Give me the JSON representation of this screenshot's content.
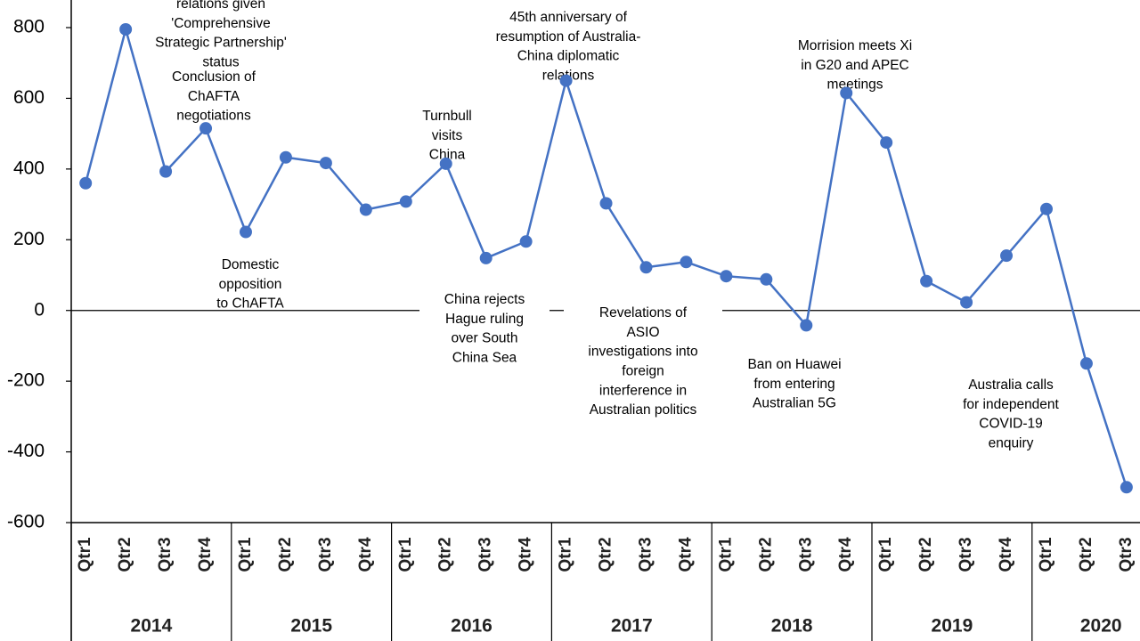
{
  "chart_data": {
    "type": "line",
    "categories": [
      "Qtr1",
      "Qtr2",
      "Qtr3",
      "Qtr4",
      "Qtr1",
      "Qtr2",
      "Qtr3",
      "Qtr4",
      "Qtr1",
      "Qtr2",
      "Qtr3",
      "Qtr4",
      "Qtr1",
      "Qtr2",
      "Qtr3",
      "Qtr4",
      "Qtr1",
      "Qtr2",
      "Qtr3",
      "Qtr4",
      "Qtr1",
      "Qtr2",
      "Qtr3",
      "Qtr4",
      "Qtr1",
      "Qtr2",
      "Qtr3"
    ],
    "years": [
      "2014",
      "2015",
      "2016",
      "2017",
      "2018",
      "2019",
      "2020"
    ],
    "series": [
      {
        "color": "#4472c4",
        "values": [
          360,
          795,
          393,
          515,
          222,
          433,
          417,
          285,
          308,
          415,
          148,
          195,
          650,
          303,
          122,
          137,
          97,
          88,
          -42,
          615,
          475,
          83,
          23,
          155,
          287,
          -150,
          -500
        ]
      }
    ],
    "ylim": [
      -600,
      800
    ],
    "yticks": [
      -600,
      -400,
      -200,
      0,
      200,
      400,
      600,
      800
    ],
    "annotations": [
      [
        "relations given",
        "'Comprehensive",
        "Strategic Partnership'",
        "status"
      ],
      [
        "Conclusion of",
        "ChAFTA",
        "negotiations"
      ],
      [
        "Domestic",
        "opposition",
        "to ChAFTA"
      ],
      [
        "Turnbull",
        "visits",
        "China"
      ],
      [
        "China rejects",
        "Hague ruling",
        "over South",
        "China Sea"
      ],
      [
        "45th anniversary of",
        "resumption of Australia-",
        "China diplomatic",
        "relations"
      ],
      [
        "Revelations of",
        "ASIO",
        "investigations into",
        "foreign",
        "interference in",
        "Australian politics"
      ],
      [
        "Morrision meets Xi",
        "in G20 and APEC",
        "meetings"
      ],
      [
        "Ban on Huawei",
        "from entering",
        "Australian 5G"
      ],
      [
        "Australia calls",
        "for independent",
        "COVID-19",
        "enquiry"
      ]
    ]
  }
}
